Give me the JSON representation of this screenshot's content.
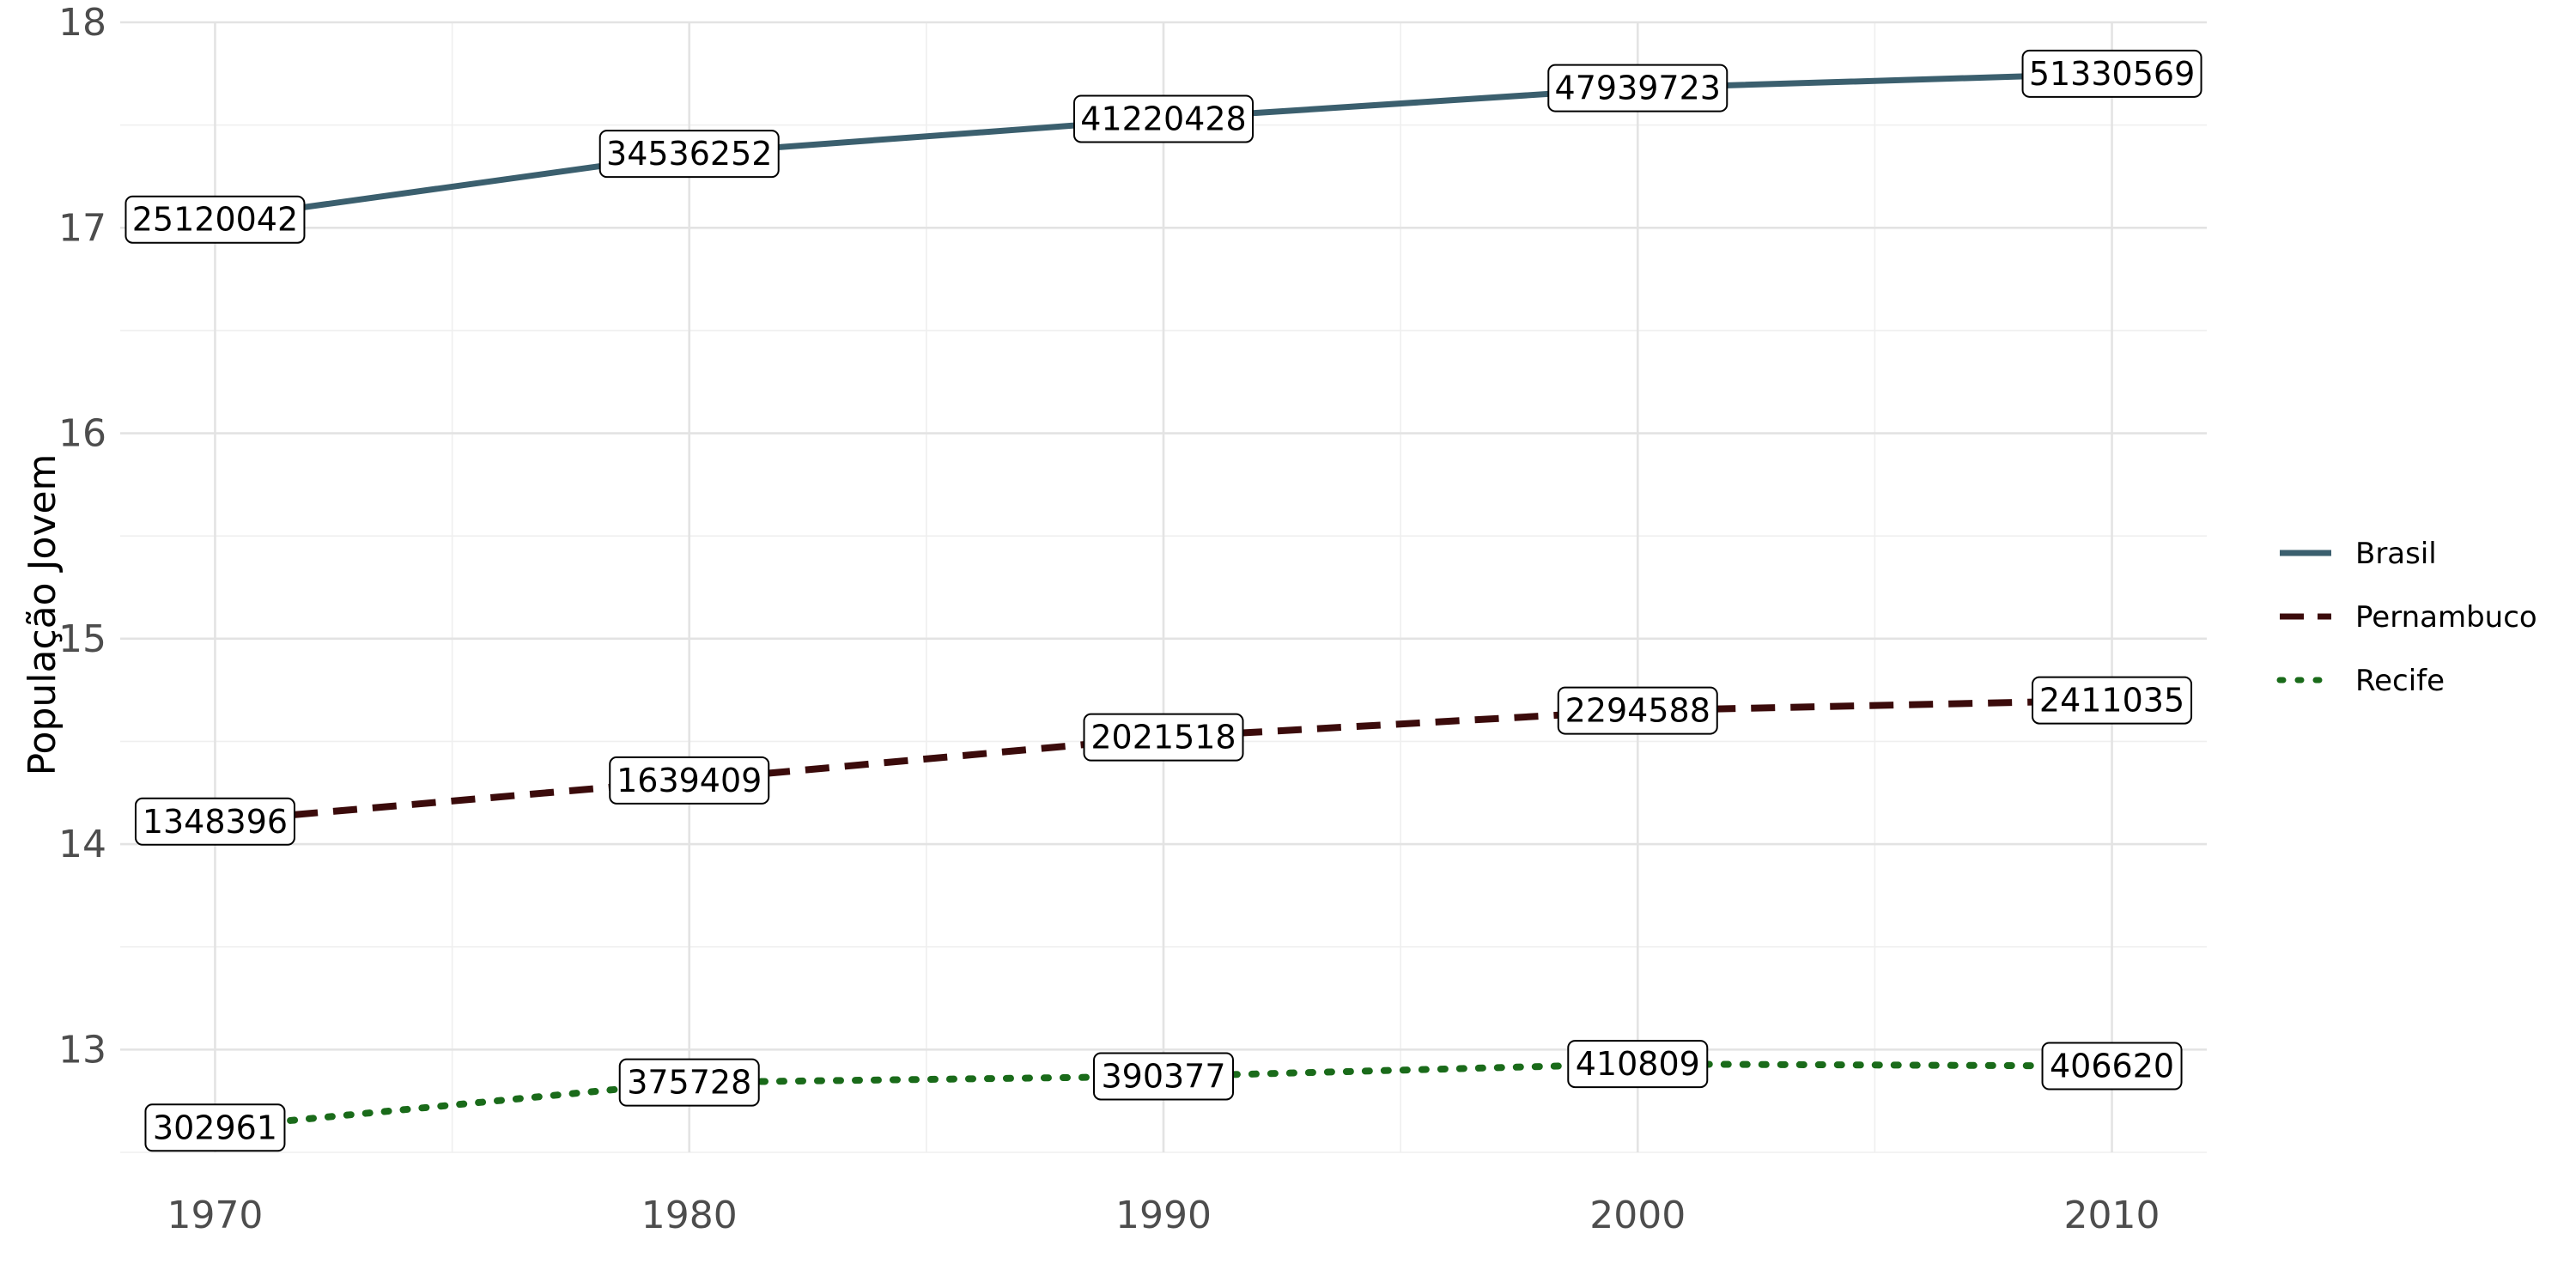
{
  "chart_data": {
    "type": "line",
    "title": "",
    "xlabel": "",
    "ylabel": "População Jovem",
    "x": [
      1970,
      1980,
      1990,
      2000,
      2010
    ],
    "xlim": [
      1968,
      2012
    ],
    "ylim": [
      12.5,
      18.0
    ],
    "x_ticks": [
      "1970",
      "1980",
      "1990",
      "2000",
      "2010"
    ],
    "y_ticks": [
      "13",
      "14",
      "15",
      "16",
      "17",
      "18"
    ],
    "grid": true,
    "legend_position": "right",
    "series": [
      {
        "name": "Brasil",
        "color": "#3b5f6e",
        "dash": "solid",
        "values": [
          17.04,
          17.36,
          17.53,
          17.68,
          17.75
        ],
        "labels": [
          "25120042",
          "34536252",
          "41220428",
          "47939723",
          "51330569"
        ]
      },
      {
        "name": "Pernambuco",
        "color": "#3b0b0b",
        "dash": "dashed",
        "values": [
          14.11,
          14.31,
          14.52,
          14.65,
          14.7
        ],
        "labels": [
          "1348396",
          "1639409",
          "2021518",
          "2294588",
          "2411035"
        ]
      },
      {
        "name": "Recife",
        "color": "#1a6b1a",
        "dash": "dotted",
        "values": [
          12.62,
          12.84,
          12.87,
          12.93,
          12.92
        ],
        "labels": [
          "302961",
          "375728",
          "390377",
          "410809",
          "406620"
        ]
      }
    ]
  }
}
